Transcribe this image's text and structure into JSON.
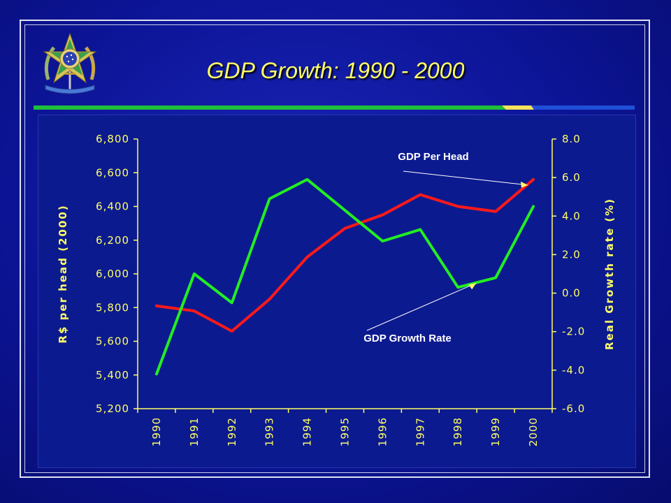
{
  "slide": {
    "title": "GDP Growth: 1990 - 2000"
  },
  "colors": {
    "background": "#0c1496",
    "title": "#ffff66",
    "gdp_per_head_line": "#ff1a1a",
    "gdp_growth_line": "#22ee22",
    "rule_green": "#1fbf3a",
    "rule_yellow": "#f7e35a",
    "rule_blue": "#1f4fd8"
  },
  "chart_data": {
    "type": "line",
    "x": [
      "1990",
      "1991",
      "1992",
      "1993",
      "1994",
      "1995",
      "1996",
      "1997",
      "1998",
      "1999",
      "2000"
    ],
    "left_axis": {
      "label": "R$ per head (2000)",
      "ylim": [
        5200,
        6800
      ],
      "ticks": [
        "5,200",
        "5,400",
        "5,600",
        "5,800",
        "6,000",
        "6,200",
        "6,400",
        "6,600",
        "6,800"
      ]
    },
    "right_axis": {
      "label": "Real Growth rate (%)",
      "ylim": [
        -6.0,
        8.0
      ],
      "ticks": [
        "-6.0",
        "-4.0",
        "-2.0",
        "0.0",
        "2.0",
        "4.0",
        "6.0",
        "8.0"
      ]
    },
    "series": [
      {
        "name": "GDP Per Head",
        "axis": "left",
        "color": "#ff1a1a",
        "values": [
          5810,
          5780,
          5660,
          5850,
          6100,
          6270,
          6350,
          6470,
          6400,
          6370,
          6560
        ]
      },
      {
        "name": "GDP Growth Rate",
        "axis": "right",
        "color": "#22ee22",
        "values": [
          -4.2,
          1.0,
          -0.5,
          4.9,
          5.9,
          4.3,
          2.7,
          3.3,
          0.3,
          0.8,
          4.5
        ]
      }
    ],
    "annotations": [
      {
        "text": "GDP Per Head",
        "points_to": "2000"
      },
      {
        "text": "GDP Growth Rate",
        "points_to": "1998"
      }
    ],
    "grid": false
  }
}
